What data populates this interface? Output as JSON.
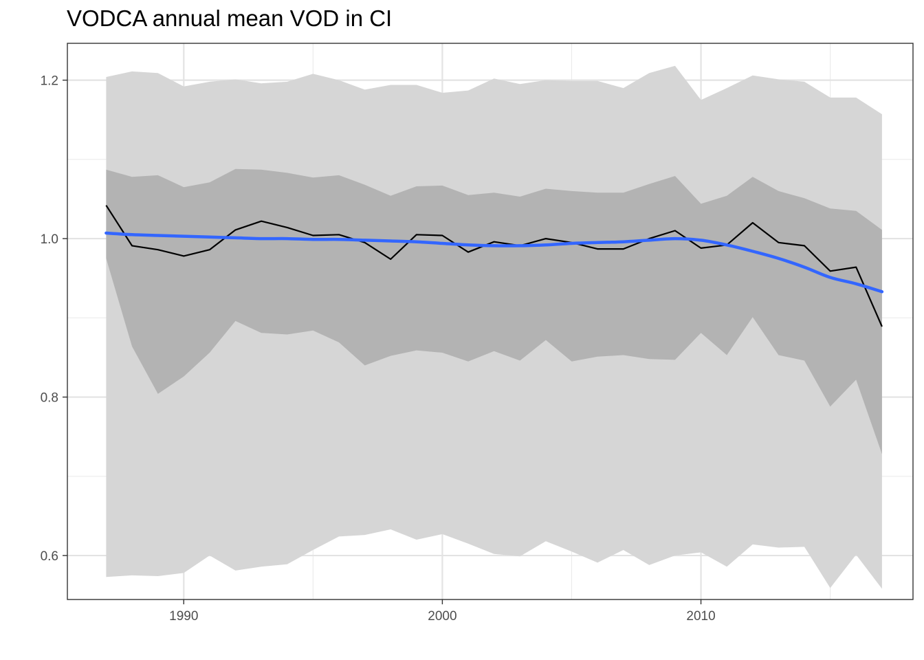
{
  "chart_data": {
    "type": "line",
    "title": "VODCA annual mean VOD in CI",
    "xlabel": "",
    "ylabel": "",
    "xlim": [
      1985.5,
      2018.2
    ],
    "ylim": [
      0.5445,
      1.2465
    ],
    "x_ticks": [
      1990,
      2000,
      2010
    ],
    "y_ticks": [
      0.6,
      0.8,
      1.0,
      1.2
    ],
    "x_tick_labels": [
      "1990",
      "2000",
      "2010"
    ],
    "y_tick_labels": [
      "0.6",
      "0.8",
      "1.0",
      "1.2"
    ],
    "grid": true,
    "legend": "none",
    "x": [
      1987,
      1988,
      1989,
      1990,
      1991,
      1992,
      1993,
      1994,
      1995,
      1996,
      1997,
      1998,
      1999,
      2000,
      2001,
      2002,
      2003,
      2004,
      2005,
      2006,
      2007,
      2008,
      2009,
      2010,
      2011,
      2012,
      2013,
      2014,
      2015,
      2016,
      2017
    ],
    "series": [
      {
        "values": [
          1.042,
          0.991,
          0.986,
          0.978,
          0.986,
          1.011,
          1.022,
          1.014,
          1.004,
          1.005,
          0.995,
          0.974,
          1.005,
          1.004,
          0.983,
          0.996,
          0.991,
          1.0,
          0.995,
          0.987,
          0.987,
          1.0,
          1.01,
          0.988,
          0.992,
          1.02,
          0.995,
          0.991,
          0.959,
          0.964,
          0.889
        ],
        "color": "#000000",
        "style": "line"
      },
      {
        "values": [
          1.007,
          1.005,
          1.004,
          1.003,
          1.002,
          1.001,
          1.0,
          1.0,
          0.999,
          0.999,
          0.998,
          0.997,
          0.996,
          0.994,
          0.992,
          0.991,
          0.991,
          0.992,
          0.994,
          0.995,
          0.996,
          0.998,
          1.0,
          0.998,
          0.992,
          0.984,
          0.975,
          0.964,
          0.951,
          0.943,
          0.933
        ],
        "color": "#3366ff",
        "style": "smooth"
      }
    ],
    "bands": [
      {
        "role": "outer",
        "color": "#d6d6d6",
        "upper": [
          1.204,
          1.211,
          1.209,
          1.192,
          1.198,
          1.201,
          1.196,
          1.198,
          1.208,
          1.2,
          1.188,
          1.194,
          1.194,
          1.184,
          1.187,
          1.202,
          1.195,
          1.2,
          1.199,
          1.199,
          1.19,
          1.209,
          1.218,
          1.175,
          1.19,
          1.206,
          1.201,
          1.198,
          1.178,
          1.178,
          1.157
        ],
        "lower": [
          0.573,
          0.575,
          0.574,
          0.578,
          0.6,
          0.581,
          0.586,
          0.589,
          0.607,
          0.624,
          0.626,
          0.633,
          0.62,
          0.627,
          0.615,
          0.602,
          0.599,
          0.618,
          0.605,
          0.591,
          0.607,
          0.588,
          0.6,
          0.604,
          0.586,
          0.614,
          0.61,
          0.611,
          0.559,
          0.601,
          0.558
        ]
      },
      {
        "role": "inner",
        "color": "#b3b3b3",
        "upper": [
          1.087,
          1.078,
          1.08,
          1.065,
          1.071,
          1.088,
          1.087,
          1.083,
          1.077,
          1.08,
          1.068,
          1.054,
          1.066,
          1.067,
          1.055,
          1.058,
          1.053,
          1.063,
          1.06,
          1.058,
          1.058,
          1.069,
          1.079,
          1.044,
          1.054,
          1.078,
          1.06,
          1.051,
          1.038,
          1.035,
          1.011
        ],
        "lower": [
          0.975,
          0.864,
          0.804,
          0.826,
          0.856,
          0.896,
          0.881,
          0.879,
          0.884,
          0.869,
          0.84,
          0.852,
          0.859,
          0.856,
          0.845,
          0.858,
          0.846,
          0.872,
          0.845,
          0.851,
          0.853,
          0.848,
          0.847,
          0.881,
          0.853,
          0.901,
          0.853,
          0.846,
          0.788,
          0.822,
          0.728
        ]
      }
    ]
  }
}
